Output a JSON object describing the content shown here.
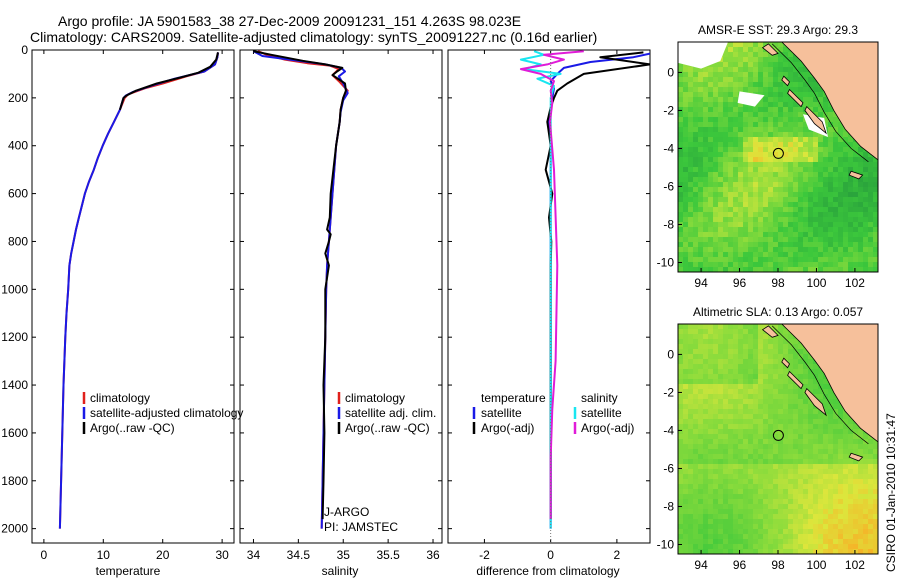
{
  "header": {
    "line1": "Argo profile: JA 5901583_38 27-Dec-2009 20091231_151 4.263S 98.023E",
    "line2": "Climatology: CARS2009. Satellite-adjusted climatology: synTS_20091227.nc (0.16d earlier)"
  },
  "credit": "CSIRO 01-Jan-2010 10:31:47",
  "colors": {
    "climatology": "#e0201c",
    "satellite": "#1a1ae6",
    "argo": "#000000",
    "sal_satellite": "#19e6f0",
    "sal_argo": "#e01cd8",
    "land": "#f6c09b",
    "coast": "#000000"
  },
  "chart_data": [
    {
      "type": "line",
      "name": "temperature-profile",
      "xlabel": "temperature",
      "ylabel": "",
      "xlim": [
        -2,
        32
      ],
      "ylim": [
        2060,
        0
      ],
      "xticks": [
        0,
        10,
        20,
        30
      ],
      "yticks": [
        0,
        200,
        400,
        600,
        800,
        1000,
        1200,
        1400,
        1600,
        1800,
        2000
      ],
      "legend": [
        "climatology",
        "satellite-adjusted climatology",
        "Argo(..raw -QC)"
      ],
      "series": [
        {
          "name": "climatology",
          "color": "climatology",
          "x": [
            29.3,
            29.2,
            28.8,
            27,
            24,
            20,
            17,
            14.2,
            13.6,
            12.8,
            11.8,
            10.8,
            9.9,
            9.1,
            8.4,
            7.6,
            6.9,
            6.4,
            5.9,
            5.4,
            5.0,
            4.6,
            4.3,
            4.1,
            3.8,
            3.6,
            3.3,
            3.0,
            2.7
          ],
          "y": [
            10,
            30,
            60,
            90,
            110,
            140,
            160,
            185,
            200,
            250,
            300,
            350,
            400,
            450,
            500,
            550,
            600,
            650,
            700,
            750,
            800,
            850,
            900,
            1000,
            1100,
            1200,
            1400,
            1700,
            2000
          ]
        },
        {
          "name": "satellite-adjusted climatology",
          "color": "satellite",
          "x": [
            29.3,
            29.2,
            28.8,
            27,
            22,
            18,
            15,
            13.8,
            13.4,
            12.8,
            11.8,
            10.8,
            9.9,
            9.1,
            8.4,
            7.6,
            6.9,
            6.4,
            5.9,
            5.4,
            5.0,
            4.6,
            4.3,
            4.1,
            3.8,
            3.6,
            3.3,
            3.0,
            2.7
          ],
          "y": [
            10,
            30,
            60,
            90,
            120,
            150,
            175,
            190,
            200,
            250,
            300,
            350,
            400,
            450,
            500,
            550,
            600,
            650,
            700,
            750,
            800,
            850,
            900,
            1000,
            1100,
            1200,
            1400,
            1700,
            2000
          ]
        },
        {
          "name": "Argo(..raw -QC)",
          "color": "argo",
          "x": [
            29.3,
            29.0,
            28,
            26,
            23,
            19,
            15.5,
            13.9,
            13.4,
            12.8
          ],
          "y": [
            10,
            40,
            70,
            95,
            115,
            140,
            170,
            190,
            200,
            250
          ]
        }
      ]
    },
    {
      "type": "line",
      "name": "salinity-profile",
      "xlabel": "salinity",
      "xlim": [
        33.85,
        36.1
      ],
      "ylim": [
        2060,
        0
      ],
      "xticks": [
        34,
        34.5,
        35,
        35.5,
        36
      ],
      "legend": [
        "climatology",
        "satellite adj. clim.",
        "Argo(..raw -QC)"
      ],
      "annotations": [
        "J-ARGO",
        "PI: JAMSTEC"
      ],
      "series": [
        {
          "name": "climatology",
          "color": "climatology",
          "x": [
            34.05,
            34.15,
            34.35,
            34.6,
            34.85,
            34.95,
            34.88,
            34.95,
            35.05,
            35.0,
            34.97,
            34.96,
            34.94,
            34.92,
            34.9,
            34.88,
            34.86,
            34.84,
            34.82,
            34.81,
            34.8,
            34.79,
            34.78,
            34.77,
            34.76
          ],
          "y": [
            5,
            20,
            40,
            55,
            65,
            80,
            105,
            130,
            170,
            200,
            250,
            300,
            350,
            400,
            500,
            600,
            700,
            800,
            900,
            1000,
            1200,
            1400,
            1600,
            1800,
            2000
          ]
        },
        {
          "name": "satellite adj. clim.",
          "color": "satellite",
          "x": [
            34.0,
            34.1,
            34.5,
            34.8,
            34.98,
            35.02,
            34.95,
            35.0,
            35.05,
            35.0,
            34.97,
            34.96,
            34.94,
            34.92,
            34.9,
            34.88,
            34.86,
            34.84,
            34.82,
            34.81,
            34.8,
            34.79,
            34.78,
            34.77,
            34.76
          ],
          "y": [
            5,
            25,
            45,
            60,
            75,
            90,
            110,
            140,
            180,
            210,
            260,
            300,
            350,
            400,
            500,
            600,
            700,
            800,
            900,
            1000,
            1200,
            1400,
            1600,
            1800,
            2000
          ]
        },
        {
          "name": "Argo(..raw -QC)",
          "color": "argo",
          "x": [
            34.0,
            34.2,
            34.55,
            34.8,
            34.99,
            34.93,
            34.88,
            35.02,
            35.03,
            35.0,
            34.97,
            34.96,
            34.94,
            34.92,
            34.89,
            34.86,
            34.85,
            34.82,
            34.86,
            34.84,
            34.8,
            34.84,
            34.82,
            34.8,
            34.8,
            34.78,
            34.79,
            34.78,
            34.77
          ],
          "y": [
            5,
            20,
            45,
            60,
            75,
            90,
            105,
            140,
            170,
            200,
            250,
            300,
            350,
            400,
            500,
            600,
            700,
            750,
            770,
            800,
            850,
            900,
            950,
            1000,
            1200,
            1400,
            1600,
            1800,
            1960
          ]
        }
      ]
    },
    {
      "type": "line",
      "name": "difference-profile",
      "xlabel": "difference from climatology",
      "xlim": [
        -3.1,
        3.0
      ],
      "ylim": [
        2060,
        0
      ],
      "xticks": [
        -2,
        0,
        2
      ],
      "legend_left_title": "temperature",
      "legend_right_title": "salinity",
      "legend": [
        "satellite",
        "Argo(-adj)",
        "satellite",
        "Argo(-adj)"
      ],
      "series": [
        {
          "name": "temperature satellite",
          "color": "satellite",
          "x": [
            3.0,
            2.5,
            1.2,
            0.4,
            0.2,
            0.0,
            0.1,
            0.05,
            0.0,
            -0.05,
            0.0,
            0.0,
            0.0,
            0.0,
            0.0,
            0.0
          ],
          "y": [
            15,
            30,
            50,
            75,
            100,
            130,
            160,
            200,
            260,
            300,
            400,
            600,
            900,
            1300,
            1700,
            2000
          ]
        },
        {
          "name": "temperature Argo(-adj)",
          "color": "argo",
          "x": [
            2.8,
            1.5,
            3.0,
            1.0,
            0.5,
            0.2,
            0.1,
            0.0,
            -0.1,
            0.0,
            -0.15,
            0.05,
            -0.05,
            0.02,
            0.0,
            0.0,
            0.0
          ],
          "y": [
            10,
            30,
            60,
            100,
            140,
            170,
            200,
            240,
            300,
            400,
            500,
            600,
            700,
            800,
            900,
            1300,
            1960
          ]
        },
        {
          "name": "salinity satellite",
          "color": "sal_satellite",
          "x": [
            -0.5,
            -0.2,
            -0.9,
            -0.3,
            -0.8,
            0.3,
            -0.4,
            0.1,
            0.0,
            0.0,
            0.0,
            0.0,
            0.0,
            0.0,
            0.0
          ],
          "y": [
            5,
            20,
            40,
            60,
            80,
            100,
            120,
            150,
            200,
            300,
            500,
            900,
            1300,
            1700,
            2000
          ]
        },
        {
          "name": "salinity Argo(-adj)",
          "color": "sal_argo",
          "x": [
            1.0,
            -0.2,
            0.4,
            -0.1,
            -0.9,
            -0.3,
            0.1,
            0.0,
            0.05,
            -0.02,
            0.1,
            0.2,
            0.15,
            0.05,
            0.0,
            0.0
          ],
          "y": [
            5,
            20,
            40,
            60,
            80,
            100,
            130,
            170,
            220,
            300,
            500,
            900,
            1300,
            1500,
            1700,
            1960
          ]
        }
      ]
    },
    {
      "type": "heatmap",
      "name": "amsre-sst-map",
      "title": "AMSR-E SST: 29.3 Argo: 29.3",
      "xlim": [
        92.8,
        103.2
      ],
      "ylim": [
        -10.5,
        1.6
      ],
      "xticks": [
        94,
        96,
        98,
        100,
        102
      ],
      "yticks": [
        0,
        -2,
        -4,
        -6,
        -8,
        -10
      ],
      "argo_position": {
        "lon": 98.02,
        "lat": -4.26
      }
    },
    {
      "type": "heatmap",
      "name": "altimetric-sla-map",
      "title": "Altimetric SLA: 0.13 Argo: 0.057",
      "xlim": [
        92.8,
        103.2
      ],
      "ylim": [
        -10.5,
        1.6
      ],
      "xticks": [
        94,
        96,
        98,
        100,
        102
      ],
      "yticks": [
        0,
        -2,
        -4,
        -6,
        -8,
        -10
      ],
      "argo_position": {
        "lon": 98.02,
        "lat": -4.26
      }
    }
  ]
}
